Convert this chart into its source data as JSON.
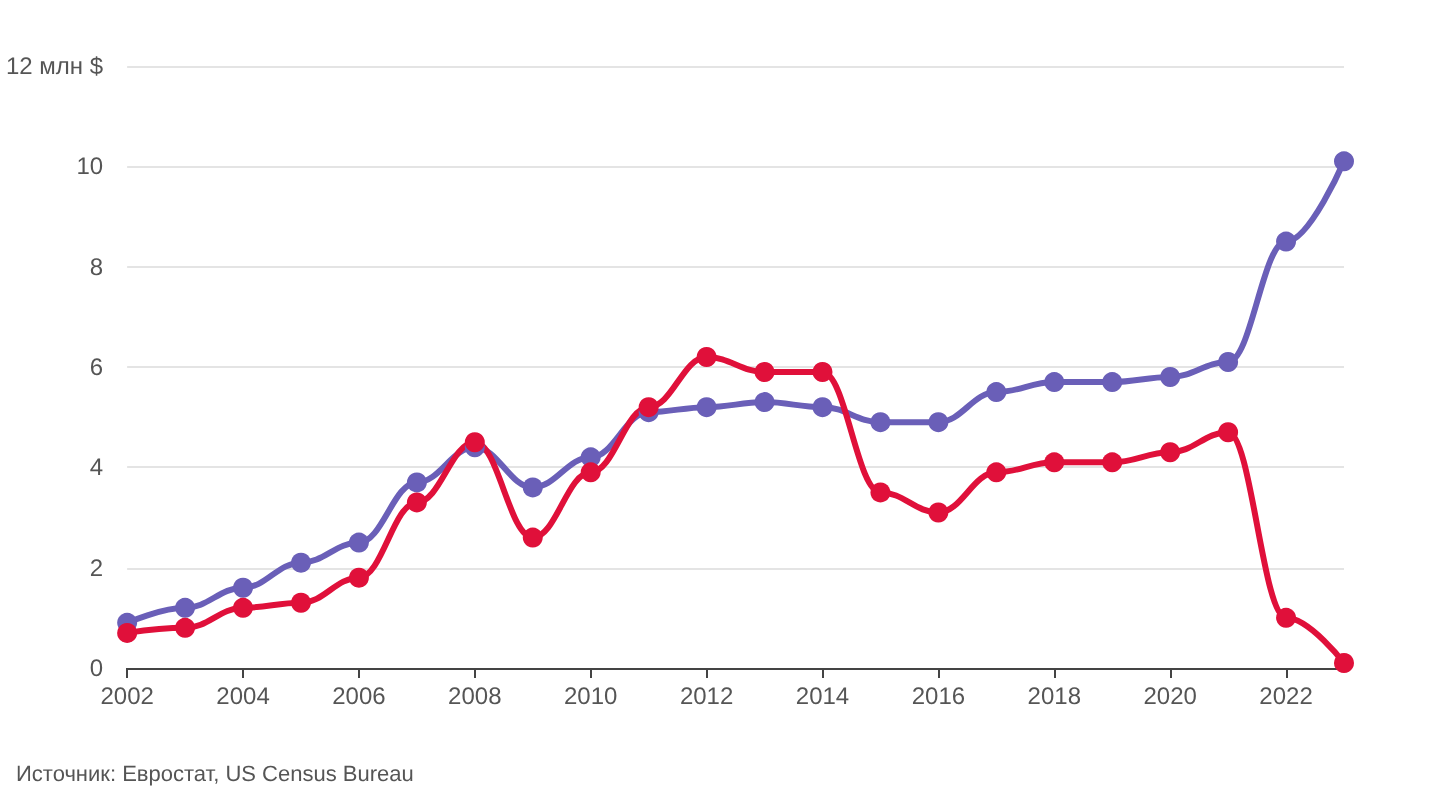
{
  "chart_data": {
    "type": "line",
    "x": [
      2002,
      2003,
      2004,
      2005,
      2006,
      2007,
      2008,
      2009,
      2010,
      2011,
      2012,
      2013,
      2014,
      2015,
      2016,
      2017,
      2018,
      2019,
      2020,
      2021,
      2022,
      2023
    ],
    "series": [
      {
        "color": "#6a5fb8",
        "values": [
          0.9,
          1.2,
          1.6,
          2.1,
          2.5,
          3.7,
          4.4,
          3.6,
          4.2,
          5.1,
          5.2,
          5.3,
          5.2,
          4.9,
          4.9,
          5.5,
          5.7,
          5.7,
          5.8,
          6.1,
          8.5,
          10.1
        ]
      },
      {
        "color": "#e0103a",
        "values": [
          0.7,
          0.8,
          1.2,
          1.3,
          1.8,
          3.3,
          4.5,
          2.6,
          3.9,
          5.2,
          6.2,
          5.9,
          5.9,
          3.5,
          3.1,
          3.9,
          4.1,
          4.1,
          4.3,
          4.7,
          1.0,
          0.1
        ]
      }
    ],
    "xlim": [
      2002,
      2023
    ],
    "xticks": [
      2002,
      2004,
      2006,
      2008,
      2010,
      2012,
      2014,
      2016,
      2018,
      2020,
      2022
    ],
    "ylim": [
      0,
      12
    ],
    "yticks": [
      0,
      2,
      4,
      6,
      8,
      10,
      {
        "value": 12,
        "label": "12 млн $"
      }
    ],
    "grid": "y",
    "marker": "circle",
    "line_style": "solid",
    "annotations": [
      "Источник: Евростат, US Census Bureau"
    ]
  }
}
